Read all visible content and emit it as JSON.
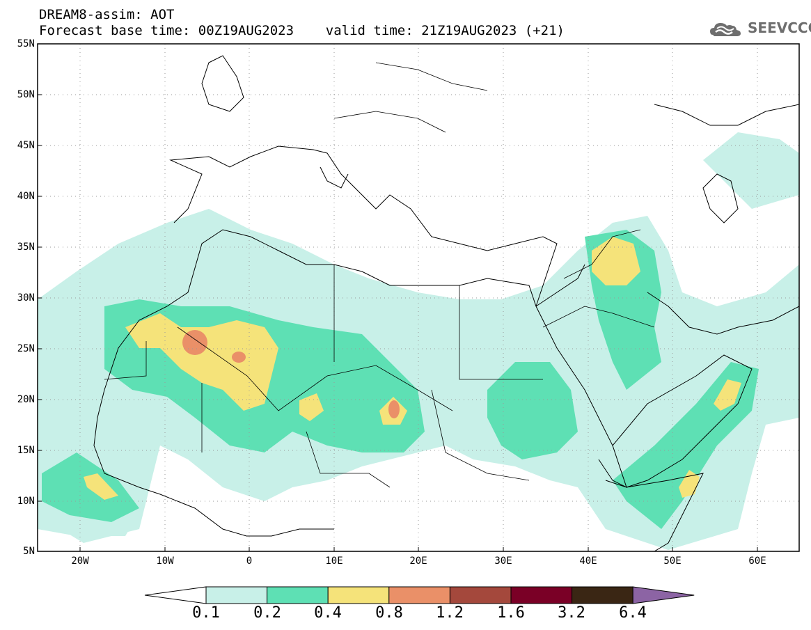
{
  "header": {
    "title_line1": "DREAM8-assim: AOT",
    "title_line2": "Forecast base time: 00Z19AUG2023    valid time: 21Z19AUG2023 (+21)"
  },
  "logo": {
    "text": "SEEVCCC",
    "icon": "cloud-icon"
  },
  "map": {
    "lat_labels": [
      "55N",
      "50N",
      "45N",
      "40N",
      "35N",
      "30N",
      "25N",
      "20N",
      "15N",
      "10N",
      "5N"
    ],
    "lon_labels": [
      "20W",
      "10W",
      "0",
      "10E",
      "20E",
      "30E",
      "40E",
      "50E",
      "60E"
    ],
    "lat_range": [
      5,
      55
    ],
    "lon_range": [
      -25,
      65
    ],
    "grid": true
  },
  "colorbar": {
    "labels": [
      "0.1",
      "0.2",
      "0.4",
      "0.8",
      "1.2",
      "1.6",
      "3.2",
      "6.4"
    ],
    "colors": [
      "#ffffff",
      "#c8f0e8",
      "#5ee0b4",
      "#f5e37a",
      "#ea9068",
      "#a4483c",
      "#7a0026",
      "#3a2614",
      "#8c64a4"
    ]
  }
}
